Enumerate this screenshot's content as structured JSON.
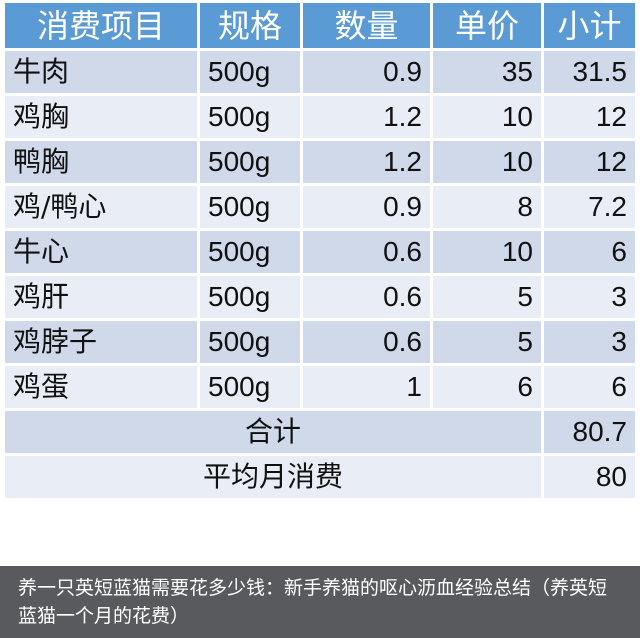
{
  "headers": [
    "消费项目",
    "规格",
    "数量",
    "单价",
    "小计"
  ],
  "rows": [
    [
      "牛肉",
      "500g",
      "0.9",
      "35",
      "31.5"
    ],
    [
      "鸡胸",
      "500g",
      "1.2",
      "10",
      "12"
    ],
    [
      "鸭胸",
      "500g",
      "1.2",
      "10",
      "12"
    ],
    [
      "鸡/鸭心",
      "500g",
      "0.9",
      "8",
      "7.2"
    ],
    [
      "牛心",
      "500g",
      "0.6",
      "10",
      "6"
    ],
    [
      "鸡肝",
      "500g",
      "0.6",
      "5",
      "3"
    ],
    [
      "鸡脖子",
      "500g",
      "0.6",
      "5",
      "3"
    ],
    [
      "鸡蛋",
      "500g",
      "1",
      "6",
      "6"
    ]
  ],
  "total": {
    "label": "合计",
    "value": "80.7"
  },
  "average": {
    "label": "平均月消费",
    "value": "80"
  },
  "caption": "养一只英短蓝猫需要花多少钱：新手养猫的呕心沥血经验总结（养英短蓝猫一个月的花费）",
  "colors": {
    "header": "#5b9bd5",
    "row_dark": "#cfd9ea",
    "row_light": "#e9eef6"
  }
}
